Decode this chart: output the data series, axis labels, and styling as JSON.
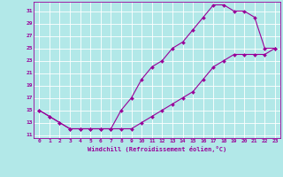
{
  "xlabel": "Windchill (Refroidissement éolien,°C)",
  "bg_color": "#b2e8e8",
  "grid_color": "#ffffff",
  "line_color": "#990099",
  "markersize": 2.0,
  "linewidth": 0.8,
  "xlim": [
    -0.5,
    23.5
  ],
  "ylim": [
    10.5,
    32.5
  ],
  "xticks": [
    0,
    1,
    2,
    3,
    4,
    5,
    6,
    7,
    8,
    9,
    10,
    11,
    12,
    13,
    14,
    15,
    16,
    17,
    18,
    19,
    20,
    21,
    22,
    23
  ],
  "yticks": [
    11,
    13,
    15,
    17,
    19,
    21,
    23,
    25,
    27,
    29,
    31
  ],
  "curve1_x": [
    0,
    1,
    2,
    3,
    4,
    5,
    6,
    7,
    8,
    9,
    10,
    11,
    12,
    13,
    14,
    15,
    16,
    17,
    18,
    19,
    20,
    21,
    22,
    23
  ],
  "curve1_y": [
    15,
    14,
    13,
    12,
    12,
    12,
    12,
    12,
    15,
    17,
    20,
    22,
    23,
    25,
    26,
    28,
    30,
    32,
    32,
    31,
    31,
    30,
    25,
    25
  ],
  "curve2_x": [
    0,
    1,
    2,
    3,
    4,
    5,
    6,
    7,
    8,
    9,
    10,
    11,
    12,
    13,
    14,
    15,
    16,
    17,
    18,
    19,
    20,
    21,
    22,
    23
  ],
  "curve2_y": [
    15,
    14,
    13,
    12,
    12,
    12,
    12,
    12,
    12,
    12,
    13,
    14,
    15,
    16,
    17,
    18,
    20,
    22,
    23,
    24,
    24,
    24,
    24,
    25
  ]
}
